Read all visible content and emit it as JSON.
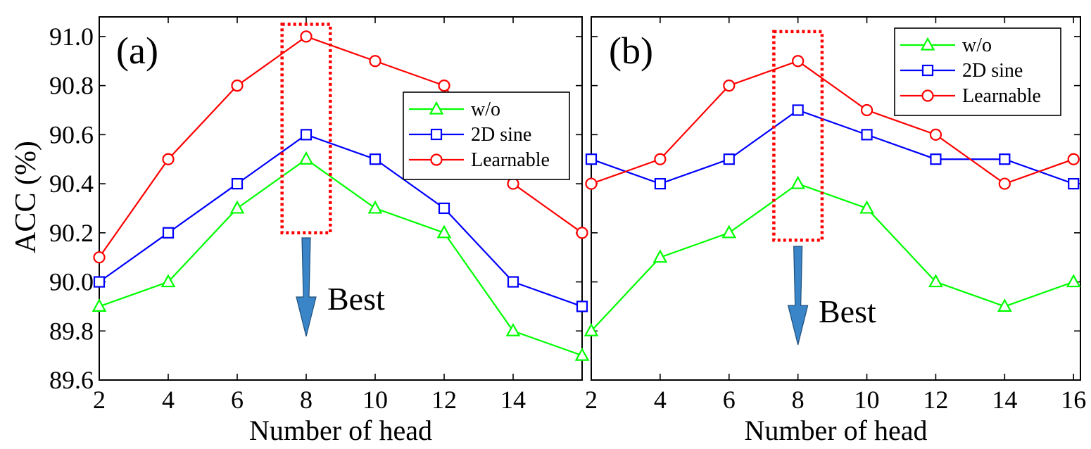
{
  "ylabel": "ACC (%)",
  "chart_data": [
    {
      "type": "line",
      "panel_label": "(a)",
      "xlabel": "Number of head",
      "ylabel": "ACC (%)",
      "x_ticks": [
        2,
        4,
        6,
        8,
        10,
        12,
        14
      ],
      "y_ticks": [
        "89.6",
        "89.8",
        "90.0",
        "90.2",
        "90.4",
        "90.6",
        "90.8",
        "91.0"
      ],
      "xlim": [
        2,
        16
      ],
      "ylim": [
        89.6,
        91.08
      ],
      "grid": false,
      "legend_position": "right",
      "x": [
        2,
        4,
        6,
        8,
        10,
        12,
        14,
        16
      ],
      "series": [
        {
          "name": "w/o",
          "color": "#00ff00",
          "marker": "triangle",
          "values": [
            89.9,
            90.0,
            90.3,
            90.5,
            90.3,
            90.2,
            89.8,
            89.7
          ]
        },
        {
          "name": "2D sine",
          "color": "#0000ff",
          "marker": "square",
          "values": [
            90.0,
            90.2,
            90.4,
            90.6,
            90.5,
            90.3,
            90.0,
            89.9
          ]
        },
        {
          "name": "Learnable",
          "color": "#ff0000",
          "marker": "circle",
          "values": [
            90.1,
            90.5,
            90.8,
            91.0,
            90.9,
            90.8,
            90.4,
            90.2
          ]
        }
      ],
      "highlight": {
        "x_from": 7.3,
        "x_to": 8.7,
        "y_from": 90.2,
        "y_to": 91.05,
        "color": "#ff0000",
        "style": "dotted"
      },
      "annotation": {
        "text": "Best",
        "at_x": 8,
        "arrow_color": "#3a85c8"
      }
    },
    {
      "type": "line",
      "panel_label": "(b)",
      "xlabel": "Number of head",
      "x_ticks": [
        2,
        4,
        6,
        8,
        10,
        12,
        14,
        16
      ],
      "y_ticks": [
        "89.6",
        "89.8",
        "90.0",
        "90.2",
        "90.4",
        "90.6",
        "90.8",
        "91.0"
      ],
      "xlim": [
        2,
        16.2
      ],
      "ylim": [
        89.6,
        91.08
      ],
      "grid": false,
      "legend_position": "top-right",
      "x": [
        2,
        4,
        6,
        8,
        10,
        12,
        14,
        16
      ],
      "series": [
        {
          "name": "w/o",
          "color": "#00ff00",
          "marker": "triangle",
          "values": [
            89.8,
            90.1,
            90.2,
            90.4,
            90.3,
            90.0,
            89.9,
            90.0
          ]
        },
        {
          "name": "2D sine",
          "color": "#0000ff",
          "marker": "square",
          "values": [
            90.5,
            90.4,
            90.5,
            90.7,
            90.6,
            90.5,
            90.5,
            90.4
          ]
        },
        {
          "name": "Learnable",
          "color": "#ff0000",
          "marker": "circle",
          "values": [
            90.4,
            90.5,
            90.8,
            90.9,
            90.7,
            90.6,
            90.4,
            90.5
          ]
        }
      ],
      "highlight": {
        "x_from": 7.3,
        "x_to": 8.7,
        "y_from": 90.17,
        "y_to": 91.02,
        "color": "#ff0000",
        "style": "dotted"
      },
      "annotation": {
        "text": "Best",
        "at_x": 8,
        "arrow_color": "#3a85c8"
      }
    }
  ]
}
